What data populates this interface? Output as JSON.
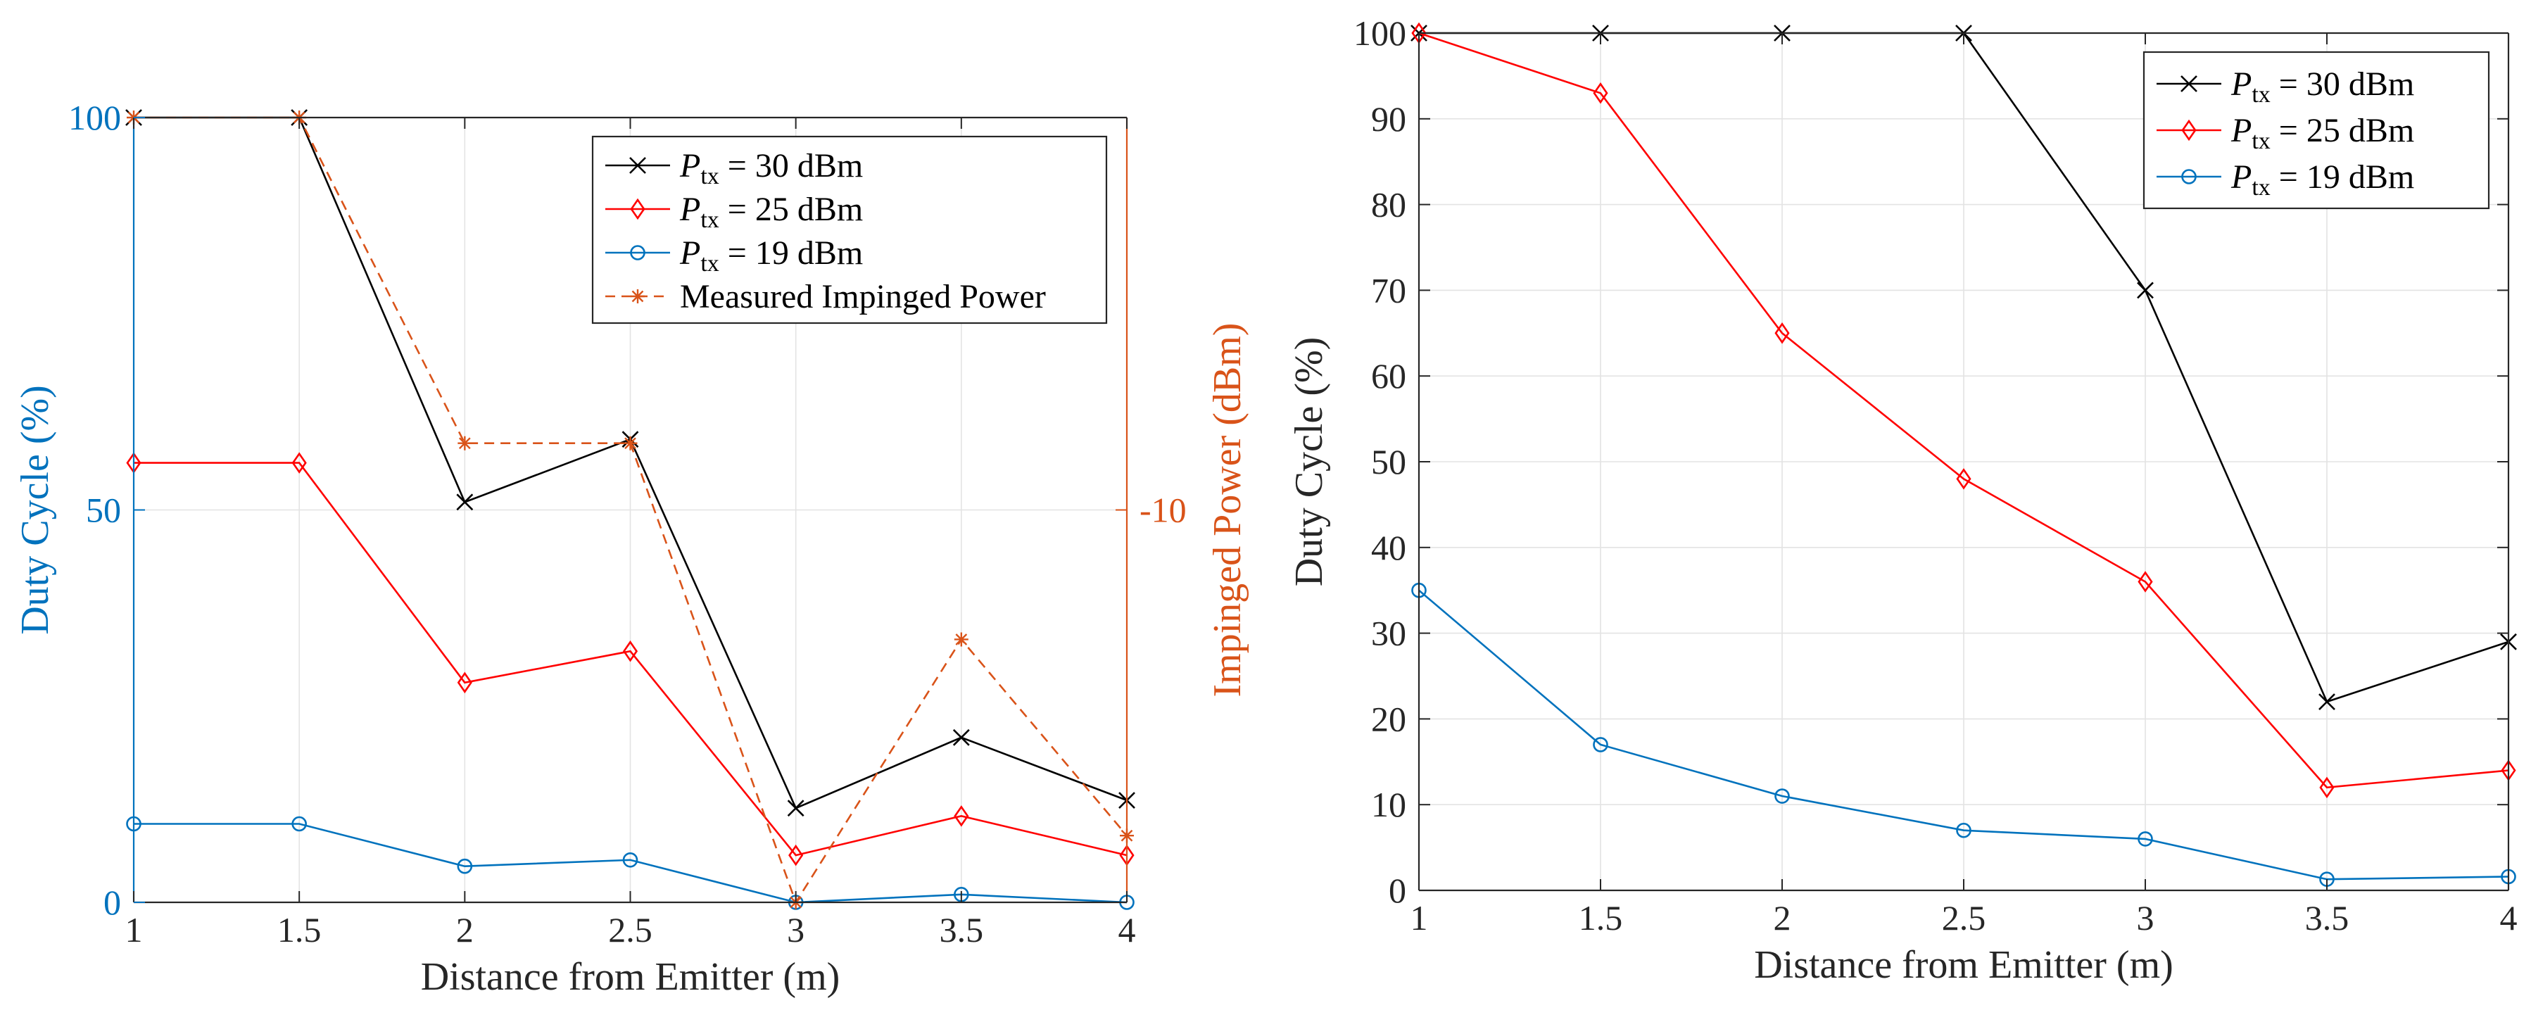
{
  "chart_data": [
    {
      "type": "line",
      "x": [
        1,
        1.5,
        2,
        2.5,
        3,
        3.5,
        4
      ],
      "xlabel": "Distance from Emitter (m)",
      "ylabel": "Duty Cycle (%)",
      "ylabel_right": "Impinged Power (dBm)",
      "xlim": [
        1,
        4
      ],
      "ylim": [
        0,
        100
      ],
      "x_ticks": [
        "1",
        "1.5",
        "2",
        "2.5",
        "3",
        "3.5",
        "4"
      ],
      "y_ticks": [
        {
          "value": 0,
          "label": "0"
        },
        {
          "value": 50,
          "label": "50"
        },
        {
          "value": 100,
          "label": "100"
        }
      ],
      "y_right_ticks": [
        {
          "value": 50,
          "label": "-10"
        }
      ],
      "grid": true,
      "legend_position": "top-right",
      "series": [
        {
          "name": "P_tx = 30 dBm",
          "legend_main": "P",
          "legend_sub": "tx",
          "legend_rest": " = 30 dBm",
          "color": "#000000",
          "marker": "x",
          "dashed": false,
          "axis": "left",
          "values": [
            100,
            100,
            51,
            59,
            12,
            21,
            13
          ]
        },
        {
          "name": "P_tx = 25 dBm",
          "legend_main": "P",
          "legend_sub": "tx",
          "legend_rest": " = 25 dBm",
          "color": "#ff0000",
          "marker": "diamond",
          "dashed": false,
          "axis": "left",
          "values": [
            56,
            56,
            28,
            32,
            6,
            11,
            6
          ]
        },
        {
          "name": "P_tx = 19 dBm",
          "legend_main": "P",
          "legend_sub": "tx",
          "legend_rest": " = 19 dBm",
          "color": "#0072bd",
          "marker": "circle",
          "dashed": false,
          "axis": "left",
          "values": [
            10,
            10,
            4.6,
            5.4,
            0,
            1,
            0
          ]
        },
        {
          "name": "Measured Impinged Power",
          "legend_main": "Measured Impinged Power",
          "legend_sub": "",
          "legend_rest": "",
          "color": "#d95319",
          "marker": "asterisk",
          "dashed": true,
          "axis": "right",
          "values_axis_scale": [
            100,
            100,
            58.5,
            58.5,
            0,
            33.5,
            8.5
          ]
        }
      ],
      "colors": {
        "left_axis": "#0072bd",
        "right_axis": "#d95319"
      }
    },
    {
      "type": "line",
      "x": [
        1,
        1.5,
        2,
        2.5,
        3,
        3.5,
        4
      ],
      "xlabel": "Distance from Emitter (m)",
      "ylabel": "Duty Cycle (%)",
      "xlim": [
        1,
        4
      ],
      "ylim": [
        0,
        100
      ],
      "x_ticks": [
        "1",
        "1.5",
        "2",
        "2.5",
        "3",
        "3.5",
        "4"
      ],
      "y_ticks": [
        {
          "value": 0,
          "label": "0"
        },
        {
          "value": 10,
          "label": "10"
        },
        {
          "value": 20,
          "label": "20"
        },
        {
          "value": 30,
          "label": "30"
        },
        {
          "value": 40,
          "label": "40"
        },
        {
          "value": 50,
          "label": "50"
        },
        {
          "value": 60,
          "label": "60"
        },
        {
          "value": 70,
          "label": "70"
        },
        {
          "value": 80,
          "label": "80"
        },
        {
          "value": 90,
          "label": "90"
        },
        {
          "value": 100,
          "label": "100"
        }
      ],
      "grid": true,
      "legend_position": "top-right",
      "series": [
        {
          "name": "P_tx = 30 dBm",
          "legend_main": "P",
          "legend_sub": "tx",
          "legend_rest": " = 30 dBm",
          "color": "#000000",
          "marker": "x",
          "dashed": false,
          "values": [
            100,
            100,
            100,
            100,
            70,
            22,
            29
          ]
        },
        {
          "name": "P_tx = 25 dBm",
          "legend_main": "P",
          "legend_sub": "tx",
          "legend_rest": " = 25 dBm",
          "color": "#ff0000",
          "marker": "diamond",
          "dashed": false,
          "values": [
            100,
            93,
            65,
            48,
            36,
            12,
            14
          ]
        },
        {
          "name": "P_tx = 19 dBm",
          "legend_main": "P",
          "legend_sub": "tx",
          "legend_rest": " = 19 dBm",
          "color": "#0072bd",
          "marker": "circle",
          "dashed": false,
          "values": [
            35,
            17,
            11,
            7,
            6,
            1.3,
            1.6
          ]
        }
      ],
      "colors": {
        "axis": "#262626"
      }
    }
  ]
}
